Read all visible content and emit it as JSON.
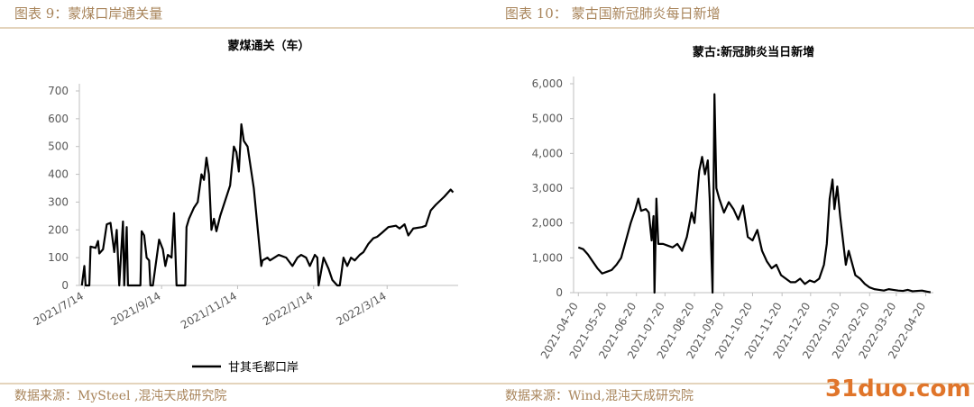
{
  "header": {
    "left": "图表 9：蒙煤口岸通关量",
    "right": "图表 10： 蒙古国新冠肺炎每日新增"
  },
  "footer": {
    "left": "数据来源：MySteel ,混沌天成研究院",
    "right": "数据来源：Wind,混沌天成研究院"
  },
  "watermark": "31duo.com",
  "chart_data": [
    {
      "type": "line",
      "title": "蒙煤通关（车）",
      "legend": "bottom",
      "x": [
        "2021/7/12",
        "2021/7/14",
        "2021/7/15",
        "2021/7/18",
        "2021/7/19",
        "2021/7/23",
        "2021/7/25",
        "2021/7/26",
        "2021/7/29",
        "2021/8/1",
        "2021/8/4",
        "2021/8/7",
        "2021/8/9",
        "2021/8/11",
        "2021/8/14",
        "2021/8/15",
        "2021/8/17",
        "2021/8/18",
        "2021/8/28",
        "2021/8/29",
        "2021/8/31",
        "2021/9/2",
        "2021/9/4",
        "2021/9/5",
        "2021/9/7",
        "2021/9/12",
        "2021/9/15",
        "2021/9/17",
        "2021/9/19",
        "2021/9/22",
        "2021/9/24",
        "2021/9/26",
        "2021/10/3",
        "2021/10/4",
        "2021/10/6",
        "2021/10/10",
        "2021/10/13",
        "2021/10/16",
        "2021/10/18",
        "2021/10/20",
        "2021/10/22",
        "2021/10/24",
        "2021/10/26",
        "2021/10/28",
        "2021/10/31",
        "2021/11/8",
        "2021/11/11",
        "2021/11/13",
        "2021/11/15",
        "2021/11/17",
        "2021/11/19",
        "2021/11/22",
        "2021/11/27",
        "2021/12/3",
        "2021/12/4",
        "2021/12/8",
        "2021/12/10",
        "2021/12/17",
        "2021/12/23",
        "2021/12/28",
        "2022/1/1",
        "2022/1/4",
        "2022/1/8",
        "2022/1/11",
        "2022/1/15",
        "2022/1/17",
        "2022/1/18",
        "2022/1/22",
        "2022/1/26",
        "2022/1/29",
        "2022/2/2",
        "2022/2/4",
        "2022/2/7",
        "2022/2/10",
        "2022/2/13",
        "2022/2/16",
        "2022/2/20",
        "2022/2/23",
        "2022/2/27",
        "2022/3/3",
        "2022/3/6",
        "2022/3/10",
        "2022/3/15",
        "2022/3/21",
        "2022/3/24",
        "2022/3/28",
        "2022/3/31",
        "2022/4/4",
        "2022/4/11",
        "2022/4/14",
        "2022/4/18",
        "2022/4/22",
        "2022/4/29",
        "2022/5/4",
        "2022/5/6"
      ],
      "series": [
        {
          "name": "甘其毛都口岸",
          "color": "#000000",
          "values": [
            0,
            70,
            0,
            0,
            140,
            135,
            160,
            115,
            130,
            220,
            225,
            120,
            200,
            0,
            230,
            0,
            210,
            0,
            0,
            195,
            180,
            100,
            90,
            0,
            0,
            165,
            130,
            70,
            110,
            100,
            260,
            0,
            0,
            210,
            240,
            280,
            300,
            400,
            380,
            460,
            400,
            200,
            240,
            195,
            250,
            360,
            500,
            480,
            410,
            580,
            520,
            500,
            350,
            70,
            90,
            100,
            90,
            110,
            100,
            70,
            100,
            110,
            100,
            70,
            110,
            100,
            0,
            100,
            60,
            20,
            0,
            0,
            100,
            70,
            100,
            90,
            110,
            120,
            150,
            170,
            175,
            190,
            210,
            215,
            205,
            220,
            180,
            205,
            210,
            215,
            270,
            290,
            320,
            345,
            335
          ]
        }
      ],
      "xlim": [
        "2021/7/10",
        "2022/5/10"
      ],
      "xticks": [
        "2021/7/14",
        "2021/9/14",
        "2021/11/14",
        "2022/1/14",
        "2022/3/14"
      ],
      "ylim": [
        0,
        700
      ],
      "yticks": [
        0,
        100,
        200,
        300,
        400,
        500,
        600,
        700
      ]
    },
    {
      "type": "line",
      "title": "蒙古:新冠肺炎当日新增",
      "x": [
        "2021-04-20",
        "2021-04-25",
        "2021-04-30",
        "2021-05-05",
        "2021-05-10",
        "2021-05-15",
        "2021-05-20",
        "2021-05-25",
        "2021-05-30",
        "2021-06-04",
        "2021-06-09",
        "2021-06-14",
        "2021-06-19",
        "2021-06-22",
        "2021-06-25",
        "2021-06-30",
        "2021-07-03",
        "2021-07-06",
        "2021-07-08",
        "2021-07-09",
        "2021-07-11",
        "2021-07-13",
        "2021-07-18",
        "2021-07-23",
        "2021-07-28",
        "2021-08-02",
        "2021-08-07",
        "2021-08-12",
        "2021-08-17",
        "2021-08-20",
        "2021-08-25",
        "2021-08-28",
        "2021-08-31",
        "2021-09-03",
        "2021-09-05",
        "2021-09-08",
        "2021-09-10",
        "2021-09-12",
        "2021-09-15",
        "2021-09-20",
        "2021-09-25",
        "2021-09-30",
        "2021-10-05",
        "2021-10-10",
        "2021-10-15",
        "2021-10-20",
        "2021-10-25",
        "2021-10-30",
        "2021-11-04",
        "2021-11-09",
        "2021-11-14",
        "2021-11-19",
        "2021-11-24",
        "2021-11-29",
        "2021-12-04",
        "2021-12-09",
        "2021-12-14",
        "2021-12-19",
        "2021-12-24",
        "2021-12-29",
        "2022-01-03",
        "2022-01-06",
        "2022-01-09",
        "2022-01-12",
        "2022-01-14",
        "2022-01-17",
        "2022-01-20",
        "2022-01-23",
        "2022-01-26",
        "2022-01-29",
        "2022-02-01",
        "2022-02-05",
        "2022-02-10",
        "2022-02-15",
        "2022-02-20",
        "2022-02-25",
        "2022-03-02",
        "2022-03-07",
        "2022-03-12",
        "2022-03-17",
        "2022-03-22",
        "2022-03-27",
        "2022-04-01",
        "2022-04-06",
        "2022-04-11",
        "2022-04-16",
        "2022-04-21",
        "2022-04-25"
      ],
      "series": [
        {
          "name": "蒙古:新冠肺炎当日新增",
          "color": "#000000",
          "values": [
            1300,
            1250,
            1100,
            900,
            700,
            550,
            600,
            650,
            800,
            1000,
            1500,
            2000,
            2400,
            2700,
            2350,
            2400,
            2300,
            1500,
            2200,
            0,
            2700,
            1400,
            1400,
            1350,
            1300,
            1400,
            1200,
            1600,
            2300,
            2000,
            3500,
            3900,
            3400,
            3800,
            2700,
            0,
            5700,
            3000,
            2700,
            2300,
            2600,
            2400,
            2100,
            2500,
            1600,
            1500,
            1800,
            1200,
            900,
            700,
            800,
            500,
            400,
            300,
            300,
            400,
            250,
            350,
            300,
            400,
            800,
            1400,
            2700,
            3250,
            2400,
            3050,
            2200,
            1500,
            800,
            1200,
            900,
            500,
            400,
            250,
            150,
            100,
            80,
            60,
            100,
            80,
            60,
            50,
            80,
            40,
            50,
            60,
            30,
            10
          ]
        }
      ],
      "xlim": [
        "2021-04-15",
        "2022-04-28"
      ],
      "xticks": [
        "2021-04-20",
        "2021-05-20",
        "2021-06-20",
        "2021-07-20",
        "2021-08-20",
        "2021-09-20",
        "2021-10-20",
        "2021-11-20",
        "2021-12-20",
        "2022-01-20",
        "2022-02-20",
        "2022-03-20",
        "2022-04-20"
      ],
      "ylim": [
        0,
        6000
      ],
      "yticks": [
        0,
        {
          "value": 1000,
          "label": "1,000"
        },
        {
          "value": 2000,
          "label": "2,000"
        },
        {
          "value": 3000,
          "label": "3,000"
        },
        {
          "value": 4000,
          "label": "4,000"
        },
        {
          "value": 5000,
          "label": "5,000"
        },
        {
          "value": 6000,
          "label": "6,000"
        }
      ]
    }
  ]
}
